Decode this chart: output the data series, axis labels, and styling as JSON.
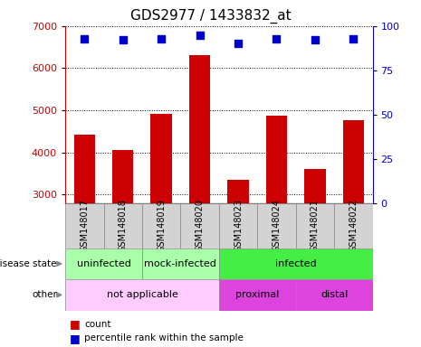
{
  "title": "GDS2977 / 1433832_at",
  "samples": [
    "GSM148017",
    "GSM148018",
    "GSM148019",
    "GSM148020",
    "GSM148023",
    "GSM148024",
    "GSM148021",
    "GSM148022"
  ],
  "counts": [
    4430,
    4050,
    4920,
    6320,
    3360,
    4880,
    3600,
    4760
  ],
  "percentile_ranks": [
    93,
    92,
    93,
    95,
    90,
    93,
    92,
    93
  ],
  "ylim_left": [
    2800,
    7000
  ],
  "ylim_right": [
    0,
    100
  ],
  "yticks_left": [
    3000,
    4000,
    5000,
    6000,
    7000
  ],
  "yticks_right": [
    0,
    25,
    50,
    75,
    100
  ],
  "bar_color": "#cc0000",
  "dot_color": "#0000cc",
  "disease_state_groups": [
    {
      "label": "uninfected",
      "start": 0,
      "end": 2,
      "color": "#aaffaa"
    },
    {
      "label": "mock-infected",
      "start": 2,
      "end": 4,
      "color": "#aaffaa"
    },
    {
      "label": "infected",
      "start": 4,
      "end": 8,
      "color": "#44ee44"
    }
  ],
  "other_groups": [
    {
      "label": "not applicable",
      "start": 0,
      "end": 4,
      "color": "#ffccff"
    },
    {
      "label": "proximal",
      "start": 4,
      "end": 6,
      "color": "#dd44dd"
    },
    {
      "label": "distal",
      "start": 6,
      "end": 8,
      "color": "#dd44dd"
    }
  ],
  "legend_count_color": "#cc0000",
  "legend_dot_color": "#0000cc",
  "title_fontsize": 11,
  "tick_fontsize": 8,
  "annotation_fontsize": 8,
  "sample_fontsize": 7
}
